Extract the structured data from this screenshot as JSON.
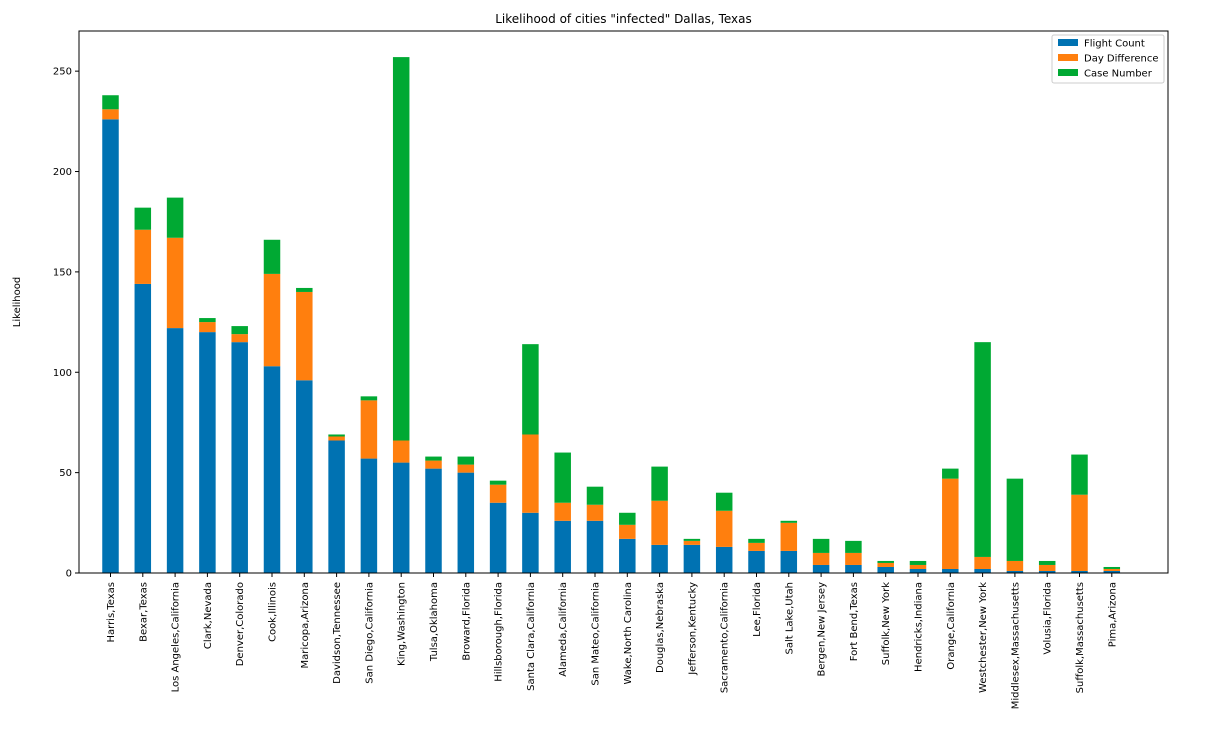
{
  "chart_data": {
    "type": "bar",
    "stacked": true,
    "title": "Likelihood of cities \"infected\" Dallas, Texas",
    "xlabel": "",
    "ylabel": "Likelihood",
    "ylim": [
      0,
      270
    ],
    "yticks": [
      0,
      50,
      100,
      150,
      200,
      250
    ],
    "legend_position": "top-right",
    "categories": [
      "Harris,Texas",
      "Bexar,Texas",
      "Los Angeles,California",
      "Clark,Nevada",
      "Denver,Colorado",
      "Cook,Illinois",
      "Maricopa,Arizona",
      "Davidson,Tennessee",
      "San Diego,California",
      "King,Washington",
      "Tulsa,Oklahoma",
      "Broward,Florida",
      "Hillsborough,Florida",
      "Santa Clara,California",
      "Alameda,California",
      "San Mateo,California",
      "Wake,North Carolina",
      "Douglas,Nebraska",
      "Jefferson,Kentucky",
      "Sacramento,California",
      "Lee,Florida",
      "Salt Lake,Utah",
      "Bergen,New Jersey",
      "Fort Bend,Texas",
      "Suffolk,New York",
      "Hendricks,Indiana",
      "Orange,California",
      "Westchester,New York",
      "Middlesex,Massachusetts",
      "Volusia,Florida",
      "Suffolk,Massachusetts",
      "Pima,Arizona"
    ],
    "series": [
      {
        "name": "Flight Count",
        "color": "#0072B2",
        "values": [
          226,
          144,
          122,
          120,
          115,
          103,
          96,
          66,
          57,
          55,
          52,
          50,
          35,
          30,
          26,
          26,
          17,
          14,
          14,
          13,
          11,
          11,
          4,
          4,
          3,
          2,
          2,
          2,
          1,
          1,
          1,
          1
        ]
      },
      {
        "name": "Day Difference",
        "color": "#FF7F0E",
        "values": [
          5,
          27,
          45,
          5,
          4,
          46,
          44,
          2,
          29,
          11,
          4,
          4,
          9,
          39,
          9,
          8,
          7,
          22,
          2,
          18,
          4,
          14,
          6,
          6,
          2,
          2,
          45,
          6,
          5,
          3,
          38,
          1
        ]
      },
      {
        "name": "Case Number",
        "color": "#00A933",
        "values": [
          7,
          11,
          20,
          2,
          4,
          17,
          2,
          1,
          2,
          191,
          2,
          4,
          2,
          45,
          25,
          9,
          6,
          17,
          1,
          9,
          2,
          1,
          7,
          6,
          1,
          2,
          5,
          107,
          41,
          2,
          20,
          1
        ]
      }
    ]
  }
}
